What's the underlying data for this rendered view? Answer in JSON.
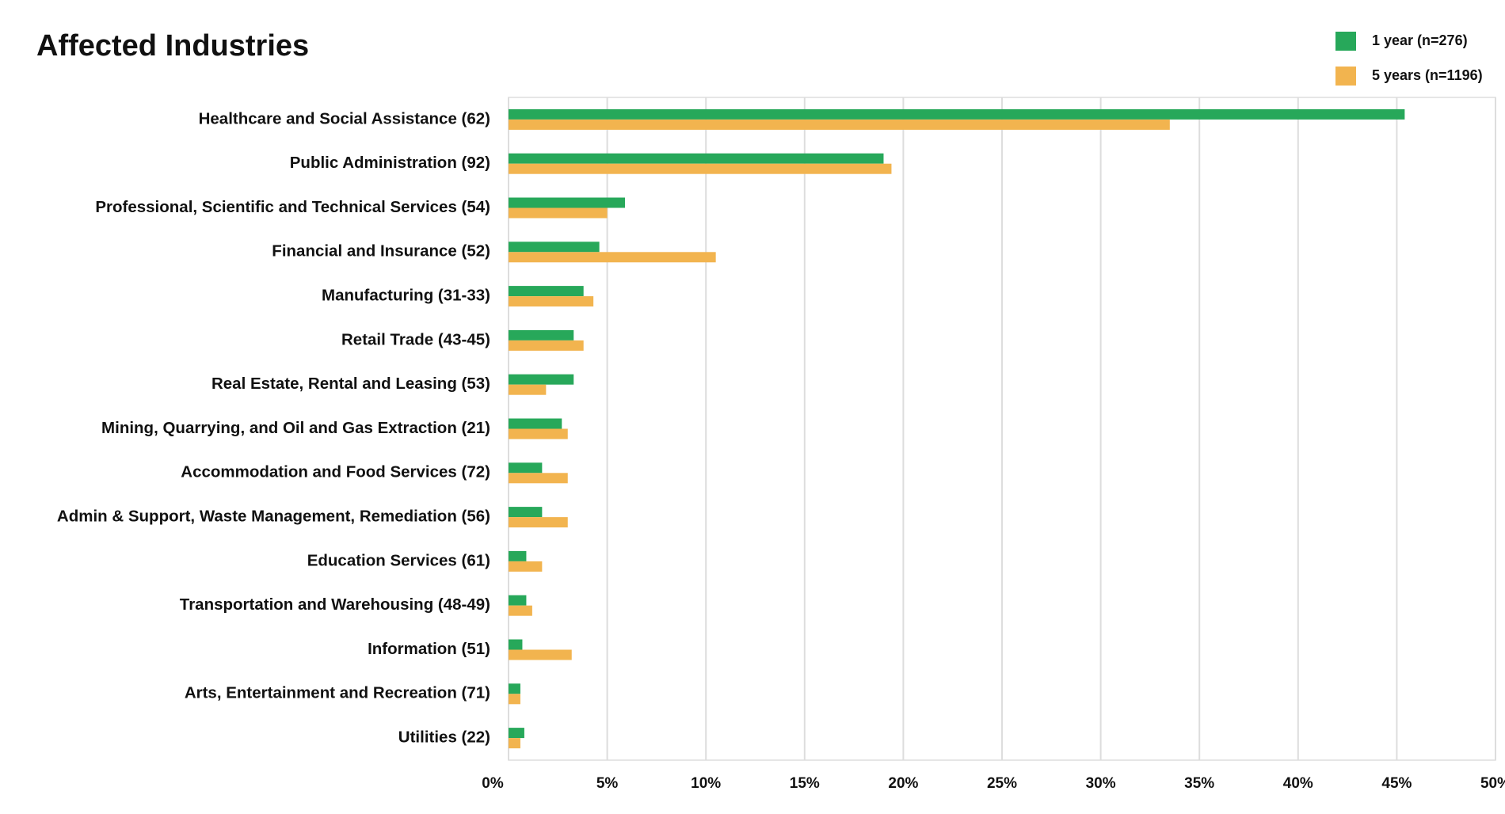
{
  "chart_data": {
    "type": "bar",
    "orientation": "horizontal",
    "title": "Affected Industries",
    "categories": [
      "Healthcare and Social Assistance (62)",
      "Public Administration (92)",
      "Professional, Scientific and Technical Services (54)",
      "Financial and Insurance (52)",
      "Manufacturing (31-33)",
      "Retail Trade (43-45)",
      "Real Estate, Rental and Leasing (53)",
      "Mining, Quarrying, and Oil and Gas Extraction (21)",
      "Accommodation and Food Services (72)",
      "Admin & Support, Waste Management, Remediation (56)",
      "Education Services (61)",
      "Transportation and Warehousing (48-49)",
      "Information (51)",
      "Arts, Entertainment and Recreation (71)",
      "Utilities (22)"
    ],
    "series": [
      {
        "name": "1 year (n=276)",
        "color": "#27a85a",
        "values": [
          45.4,
          19.0,
          5.9,
          4.6,
          3.8,
          3.3,
          3.3,
          2.7,
          1.7,
          1.7,
          0.9,
          0.9,
          0.7,
          0.6,
          0.8
        ]
      },
      {
        "name": "5 years (n=1196)",
        "color": "#f2b44f",
        "values": [
          33.5,
          19.4,
          5.0,
          10.5,
          4.3,
          3.8,
          1.9,
          3.0,
          3.0,
          3.0,
          1.7,
          1.2,
          3.2,
          0.6,
          0.6
        ]
      }
    ],
    "xlim": [
      0,
      50
    ],
    "xticks": [
      {
        "value": 0,
        "label": "0%"
      },
      {
        "value": 5,
        "label": "5%"
      },
      {
        "value": 10,
        "label": "10%"
      },
      {
        "value": 15,
        "label": "15%"
      },
      {
        "value": 20,
        "label": "20%"
      },
      {
        "value": 25,
        "label": "25%"
      },
      {
        "value": 30,
        "label": "30%"
      },
      {
        "value": 35,
        "label": "35%"
      },
      {
        "value": 40,
        "label": "40%"
      },
      {
        "value": 45,
        "label": "45%"
      },
      {
        "value": 50,
        "label": "50%"
      }
    ],
    "grid": true,
    "legend": "top-right"
  }
}
